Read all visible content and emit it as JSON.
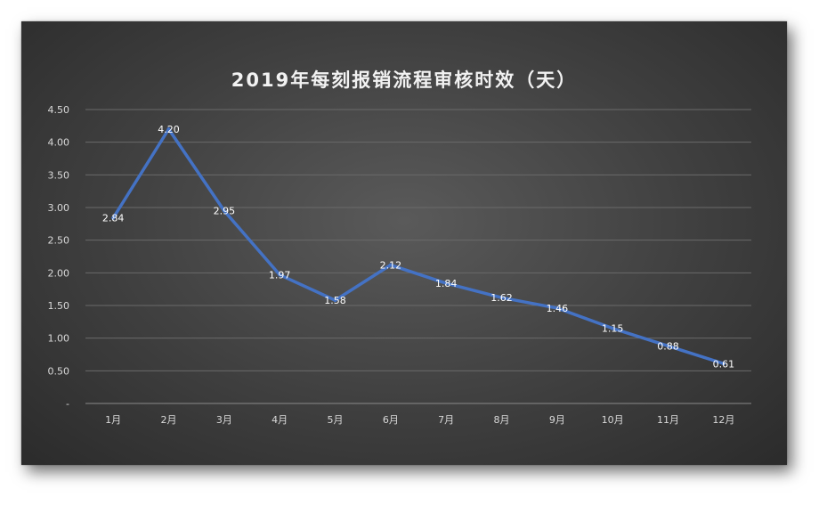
{
  "chart_data": {
    "type": "line",
    "title": "2019年每刻报销流程审核时效（天）",
    "categories": [
      "1月",
      "2月",
      "3月",
      "4月",
      "5月",
      "6月",
      "7月",
      "8月",
      "9月",
      "10月",
      "11月",
      "12月"
    ],
    "series": [
      {
        "values": [
          2.84,
          4.2,
          2.95,
          1.97,
          1.58,
          2.12,
          1.84,
          1.62,
          1.46,
          1.15,
          0.88,
          0.61
        ]
      }
    ],
    "data_labels": [
      "2.84",
      "4.20",
      "2.95",
      "1.97",
      "1.58",
      "2.12",
      "1.84",
      "1.62",
      "1.46",
      "1.15",
      "0.88",
      "0.61"
    ],
    "ylim": [
      0,
      4.5
    ],
    "y_ticks": [
      "-",
      "0.50",
      "1.00",
      "1.50",
      "2.00",
      "2.50",
      "3.00",
      "3.50",
      "4.00",
      "4.50"
    ],
    "y_tick_values": [
      0,
      0.5,
      1.0,
      1.5,
      2.0,
      2.5,
      3.0,
      3.5,
      4.0,
      4.5
    ],
    "grid": true,
    "legend": "none",
    "line_color": "#4472c4"
  }
}
